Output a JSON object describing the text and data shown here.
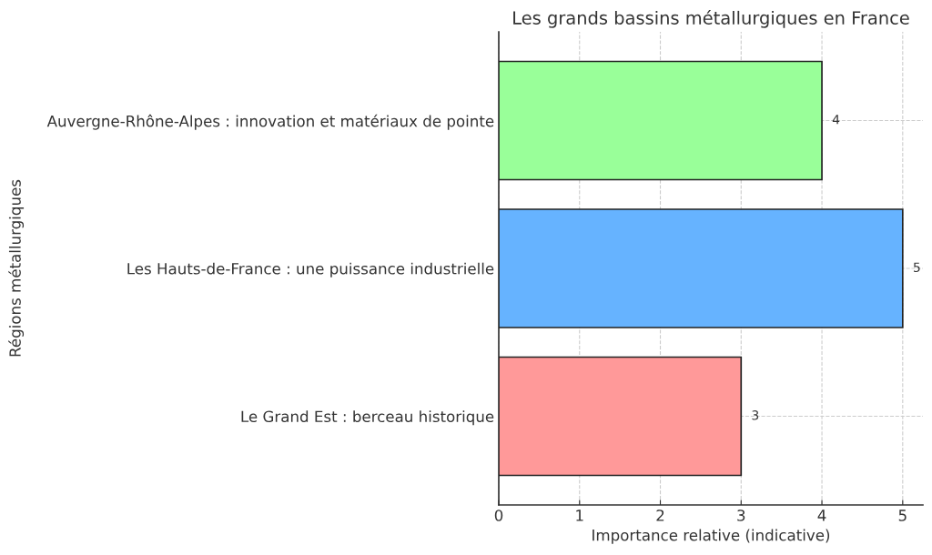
{
  "chart_data": {
    "type": "bar",
    "orientation": "horizontal",
    "title": "Les grands bassins métallurgiques en France",
    "xlabel": "Importance relative (indicative)",
    "ylabel": "Régions métallurgiques",
    "categories": [
      "Auvergne-Rhône-Alpes : innovation et matériaux de pointe",
      "Les Hauts-de-France : une puissance industrielle",
      "Le Grand Est : berceau historique"
    ],
    "values": [
      4,
      5,
      3
    ],
    "colors": [
      "#99ff99",
      "#66b3ff",
      "#ff9999"
    ],
    "xlim": [
      0,
      5.25
    ],
    "xticks": [
      0,
      1,
      2,
      3,
      4,
      5
    ],
    "grid": true,
    "data_labels": true
  }
}
